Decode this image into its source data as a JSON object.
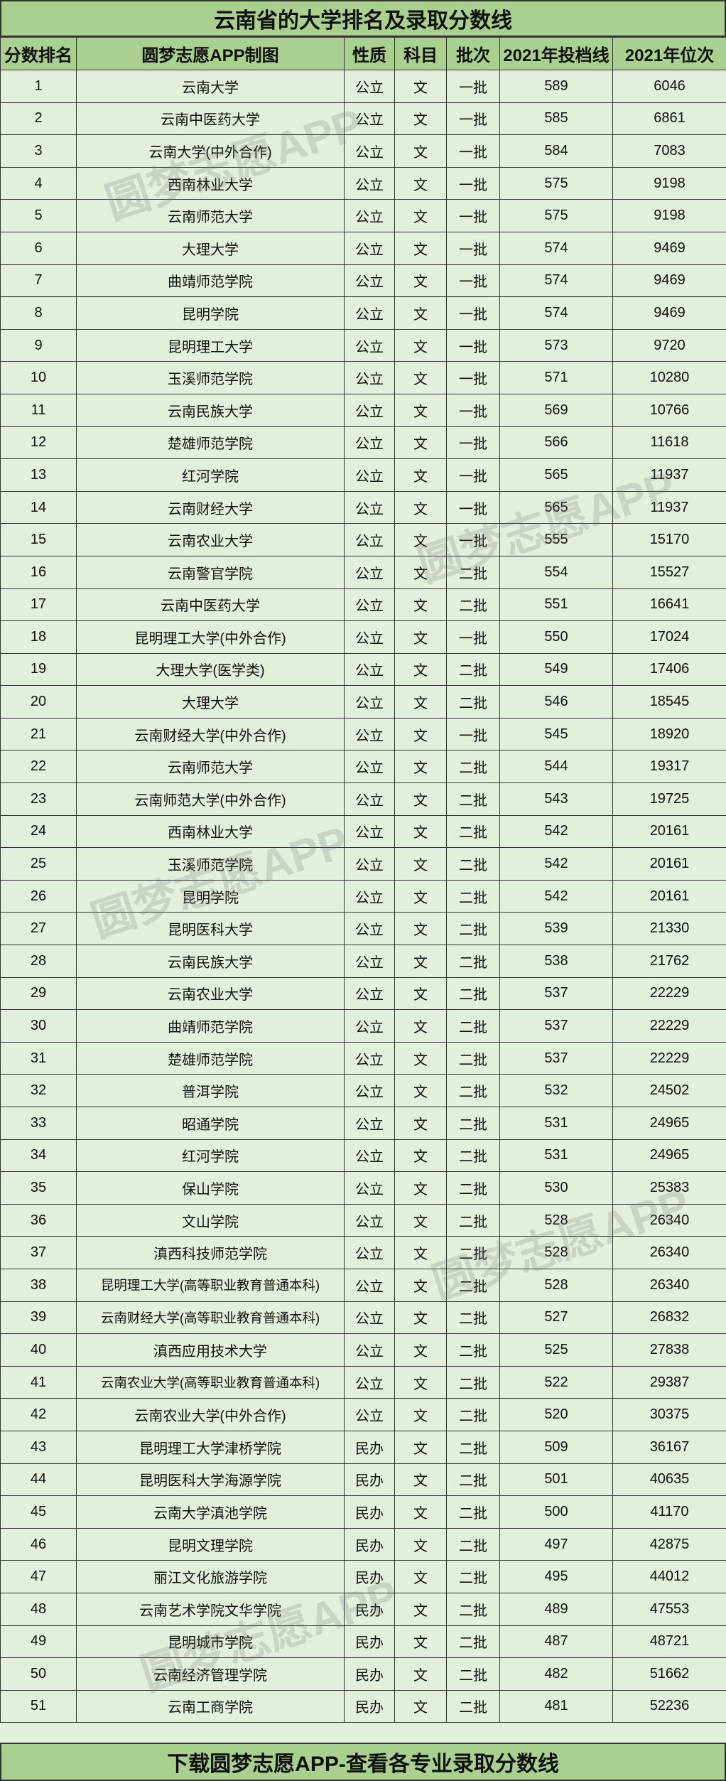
{
  "title": "云南省的大学排名及录取分数线",
  "footer": "下载圆梦志愿APP-查看各专业录取分数线",
  "watermark": "圆梦志愿APP",
  "colors": {
    "header_bg": "#a9d08e",
    "row_bg": "#e2efda",
    "border": "#333333"
  },
  "columns": [
    "分数排名",
    "圆梦志愿APP制图",
    "性质",
    "科目",
    "批次",
    "2021年投档线",
    "2021年位次"
  ],
  "rows": [
    [
      "1",
      "云南大学",
      "公立",
      "文",
      "一批",
      "589",
      "6046"
    ],
    [
      "2",
      "云南中医药大学",
      "公立",
      "文",
      "一批",
      "585",
      "6861"
    ],
    [
      "3",
      "云南大学(中外合作)",
      "公立",
      "文",
      "一批",
      "584",
      "7083"
    ],
    [
      "4",
      "西南林业大学",
      "公立",
      "文",
      "一批",
      "575",
      "9198"
    ],
    [
      "5",
      "云南师范大学",
      "公立",
      "文",
      "一批",
      "575",
      "9198"
    ],
    [
      "6",
      "大理大学",
      "公立",
      "文",
      "一批",
      "574",
      "9469"
    ],
    [
      "7",
      "曲靖师范学院",
      "公立",
      "文",
      "一批",
      "574",
      "9469"
    ],
    [
      "8",
      "昆明学院",
      "公立",
      "文",
      "一批",
      "574",
      "9469"
    ],
    [
      "9",
      "昆明理工大学",
      "公立",
      "文",
      "一批",
      "573",
      "9720"
    ],
    [
      "10",
      "玉溪师范学院",
      "公立",
      "文",
      "一批",
      "571",
      "10280"
    ],
    [
      "11",
      "云南民族大学",
      "公立",
      "文",
      "一批",
      "569",
      "10766"
    ],
    [
      "12",
      "楚雄师范学院",
      "公立",
      "文",
      "一批",
      "566",
      "11618"
    ],
    [
      "13",
      "红河学院",
      "公立",
      "文",
      "一批",
      "565",
      "11937"
    ],
    [
      "14",
      "云南财经大学",
      "公立",
      "文",
      "一批",
      "565",
      "11937"
    ],
    [
      "15",
      "云南农业大学",
      "公立",
      "文",
      "一批",
      "555",
      "15170"
    ],
    [
      "16",
      "云南警官学院",
      "公立",
      "文",
      "二批",
      "554",
      "15527"
    ],
    [
      "17",
      "云南中医药大学",
      "公立",
      "文",
      "二批",
      "551",
      "16641"
    ],
    [
      "18",
      "昆明理工大学(中外合作)",
      "公立",
      "文",
      "一批",
      "550",
      "17024"
    ],
    [
      "19",
      "大理大学(医学类)",
      "公立",
      "文",
      "二批",
      "549",
      "17406"
    ],
    [
      "20",
      "大理大学",
      "公立",
      "文",
      "二批",
      "546",
      "18545"
    ],
    [
      "21",
      "云南财经大学(中外合作)",
      "公立",
      "文",
      "一批",
      "545",
      "18920"
    ],
    [
      "22",
      "云南师范大学",
      "公立",
      "文",
      "二批",
      "544",
      "19317"
    ],
    [
      "23",
      "云南师范大学(中外合作)",
      "公立",
      "文",
      "二批",
      "543",
      "19725"
    ],
    [
      "24",
      "西南林业大学",
      "公立",
      "文",
      "二批",
      "542",
      "20161"
    ],
    [
      "25",
      "玉溪师范学院",
      "公立",
      "文",
      "二批",
      "542",
      "20161"
    ],
    [
      "26",
      "昆明学院",
      "公立",
      "文",
      "二批",
      "542",
      "20161"
    ],
    [
      "27",
      "昆明医科大学",
      "公立",
      "文",
      "二批",
      "539",
      "21330"
    ],
    [
      "28",
      "云南民族大学",
      "公立",
      "文",
      "二批",
      "538",
      "21762"
    ],
    [
      "29",
      "云南农业大学",
      "公立",
      "文",
      "二批",
      "537",
      "22229"
    ],
    [
      "30",
      "曲靖师范学院",
      "公立",
      "文",
      "二批",
      "537",
      "22229"
    ],
    [
      "31",
      "楚雄师范学院",
      "公立",
      "文",
      "二批",
      "537",
      "22229"
    ],
    [
      "32",
      "普洱学院",
      "公立",
      "文",
      "二批",
      "532",
      "24502"
    ],
    [
      "33",
      "昭通学院",
      "公立",
      "文",
      "二批",
      "531",
      "24965"
    ],
    [
      "34",
      "红河学院",
      "公立",
      "文",
      "二批",
      "531",
      "24965"
    ],
    [
      "35",
      "保山学院",
      "公立",
      "文",
      "二批",
      "530",
      "25383"
    ],
    [
      "36",
      "文山学院",
      "公立",
      "文",
      "二批",
      "528",
      "26340"
    ],
    [
      "37",
      "滇西科技师范学院",
      "公立",
      "文",
      "二批",
      "528",
      "26340"
    ],
    [
      "38",
      "昆明理工大学(高等职业教育普通本科)",
      "公立",
      "文",
      "二批",
      "528",
      "26340"
    ],
    [
      "39",
      "云南财经大学(高等职业教育普通本科)",
      "公立",
      "文",
      "二批",
      "527",
      "26832"
    ],
    [
      "40",
      "滇西应用技术大学",
      "公立",
      "文",
      "二批",
      "525",
      "27838"
    ],
    [
      "41",
      "云南农业大学(高等职业教育普通本科)",
      "公立",
      "文",
      "二批",
      "522",
      "29387"
    ],
    [
      "42",
      "云南农业大学(中外合作)",
      "公立",
      "文",
      "二批",
      "520",
      "30375"
    ],
    [
      "43",
      "昆明理工大学津桥学院",
      "民办",
      "文",
      "二批",
      "509",
      "36167"
    ],
    [
      "44",
      "昆明医科大学海源学院",
      "民办",
      "文",
      "二批",
      "501",
      "40635"
    ],
    [
      "45",
      "云南大学滇池学院",
      "民办",
      "文",
      "二批",
      "500",
      "41170"
    ],
    [
      "46",
      "昆明文理学院",
      "民办",
      "文",
      "二批",
      "497",
      "42875"
    ],
    [
      "47",
      "丽江文化旅游学院",
      "民办",
      "文",
      "二批",
      "495",
      "44012"
    ],
    [
      "48",
      "云南艺术学院文华学院",
      "民办",
      "文",
      "二批",
      "489",
      "47553"
    ],
    [
      "49",
      "昆明城市学院",
      "民办",
      "文",
      "二批",
      "487",
      "48721"
    ],
    [
      "50",
      "云南经济管理学院",
      "民办",
      "文",
      "二批",
      "482",
      "51662"
    ],
    [
      "51",
      "云南工商学院",
      "民办",
      "文",
      "二批",
      "481",
      "52236"
    ]
  ]
}
